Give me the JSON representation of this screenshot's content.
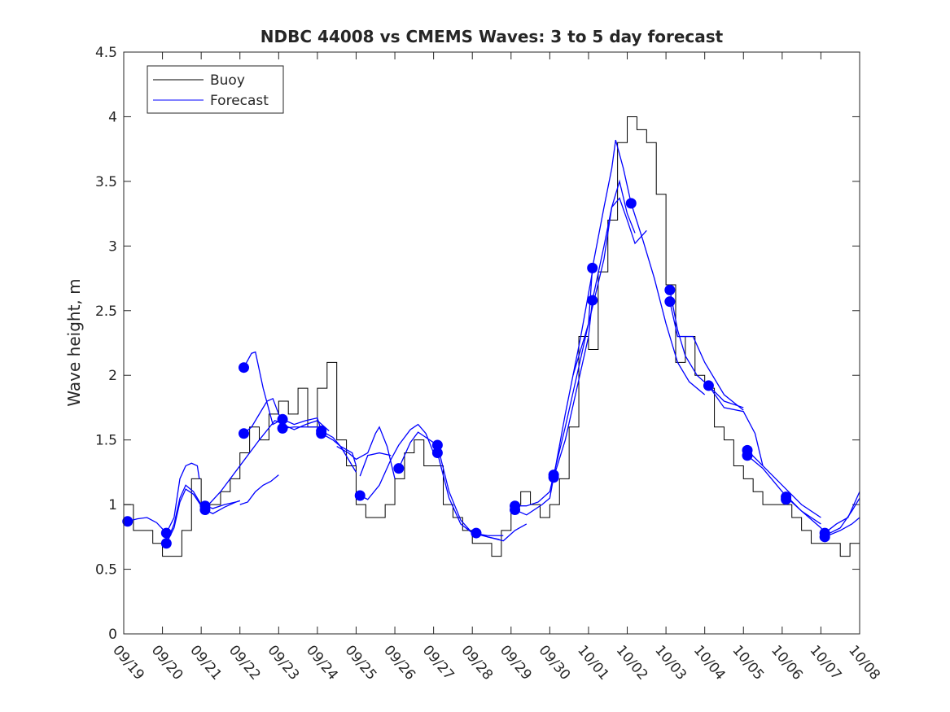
{
  "chart_data": {
    "type": "line",
    "title": "NDBC 44008 vs CMEMS Waves: 3 to 5 day forecast",
    "xlabel": "",
    "ylabel": "Wave height, m",
    "xlim_days": [
      0,
      19
    ],
    "ylim": [
      0,
      4.5
    ],
    "x_tick_labels": [
      "09/19",
      "09/20",
      "09/21",
      "09/22",
      "09/23",
      "09/24",
      "09/25",
      "09/26",
      "09/27",
      "09/28",
      "09/29",
      "09/30",
      "10/01",
      "10/02",
      "10/03",
      "10/04",
      "10/05",
      "10/06",
      "10/07",
      "10/08"
    ],
    "y_ticks": [
      0,
      0.5,
      1,
      1.5,
      2,
      2.5,
      3,
      3.5,
      4,
      4.5
    ],
    "y_tick_labels": [
      "0",
      "0.5",
      "1",
      "1.5",
      "2",
      "2.5",
      "3",
      "3.5",
      "4",
      "4.5"
    ],
    "legend": {
      "placement": "top-left",
      "entries": [
        "Buoy",
        "Forecast"
      ]
    },
    "colors": {
      "buoy": "#000000",
      "forecast": "#0000ff"
    },
    "buoy": {
      "name": "Buoy",
      "t0": 0,
      "dt_days": 0.25,
      "values": [
        1.0,
        0.8,
        0.8,
        0.7,
        0.6,
        0.6,
        0.8,
        1.2,
        1.0,
        1.0,
        1.1,
        1.2,
        1.4,
        1.6,
        1.5,
        1.7,
        1.8,
        1.7,
        1.9,
        1.6,
        1.9,
        2.1,
        1.5,
        1.3,
        1.0,
        0.9,
        0.9,
        1.0,
        1.2,
        1.4,
        1.5,
        1.3,
        1.3,
        1.0,
        0.9,
        0.8,
        0.7,
        0.7,
        0.6,
        0.8,
        1.0,
        1.1,
        1.0,
        0.9,
        1.0,
        1.2,
        1.6,
        2.3,
        2.2,
        2.8,
        3.2,
        3.8,
        4.0,
        3.9,
        3.8,
        3.4,
        2.7,
        2.1,
        2.3,
        2.0,
        1.9,
        1.6,
        1.5,
        1.3,
        1.2,
        1.1,
        1.0,
        1.0,
        1.0,
        0.9,
        0.8,
        0.7,
        0.7,
        0.7,
        0.6,
        0.7
      ]
    },
    "forecast_segments": [
      [
        [
          0.1,
          0.87
        ],
        [
          0.35,
          0.89
        ],
        [
          0.6,
          0.9
        ],
        [
          0.85,
          0.86
        ],
        [
          1.1,
          0.78
        ]
      ],
      [
        [
          1.1,
          0.78
        ],
        [
          1.3,
          0.9
        ],
        [
          1.45,
          1.2
        ],
        [
          1.6,
          1.3
        ],
        [
          1.75,
          1.32
        ],
        [
          1.9,
          1.3
        ],
        [
          1.95,
          1.2
        ]
      ],
      [
        [
          1.1,
          0.7
        ],
        [
          1.3,
          0.85
        ],
        [
          1.45,
          1.05
        ],
        [
          1.6,
          1.15
        ],
        [
          1.8,
          1.1
        ],
        [
          2.0,
          1.0
        ],
        [
          2.1,
          0.96
        ]
      ],
      [
        [
          1.1,
          0.7
        ],
        [
          1.3,
          0.82
        ],
        [
          1.45,
          1.02
        ],
        [
          1.6,
          1.12
        ],
        [
          1.8,
          1.08
        ],
        [
          2.0,
          0.99
        ],
        [
          2.1,
          0.99
        ]
      ],
      [
        [
          2.1,
          0.99
        ],
        [
          2.3,
          0.97
        ],
        [
          2.6,
          1.0
        ],
        [
          2.9,
          1.02
        ],
        [
          3.0,
          1.03
        ]
      ],
      [
        [
          2.1,
          0.96
        ],
        [
          2.3,
          0.93
        ],
        [
          2.6,
          0.98
        ],
        [
          2.9,
          1.02
        ],
        [
          3.0,
          1.03
        ]
      ],
      [
        [
          3.0,
          1.0
        ],
        [
          3.2,
          1.02
        ],
        [
          3.4,
          1.1
        ],
        [
          3.6,
          1.15
        ],
        [
          3.8,
          1.18
        ],
        [
          4.0,
          1.23
        ]
      ],
      [
        [
          2.1,
          0.97
        ],
        [
          2.5,
          1.1
        ],
        [
          3.0,
          1.3
        ],
        [
          3.5,
          1.5
        ],
        [
          3.9,
          1.65
        ],
        [
          4.1,
          1.63
        ]
      ],
      [
        [
          3.1,
          2.06
        ],
        [
          3.3,
          2.17
        ],
        [
          3.4,
          2.18
        ],
        [
          3.6,
          1.9
        ],
        [
          3.85,
          1.62
        ],
        [
          4.1,
          1.66
        ]
      ],
      [
        [
          3.1,
          1.55
        ],
        [
          3.3,
          1.6
        ],
        [
          3.5,
          1.7
        ],
        [
          3.7,
          1.8
        ],
        [
          3.85,
          1.82
        ],
        [
          4.0,
          1.7
        ],
        [
          4.1,
          1.66
        ]
      ],
      [
        [
          4.1,
          1.66
        ],
        [
          4.4,
          1.62
        ],
        [
          4.7,
          1.65
        ],
        [
          5.0,
          1.67
        ],
        [
          5.1,
          1.57
        ]
      ],
      [
        [
          4.1,
          1.59
        ],
        [
          4.4,
          1.6
        ],
        [
          4.7,
          1.6
        ],
        [
          5.0,
          1.6
        ],
        [
          5.1,
          1.55
        ]
      ],
      [
        [
          4.1,
          1.62
        ],
        [
          4.4,
          1.58
        ],
        [
          4.7,
          1.62
        ],
        [
          5.0,
          1.65
        ],
        [
          5.3,
          1.57
        ]
      ],
      [
        [
          5.1,
          1.57
        ],
        [
          5.4,
          1.52
        ],
        [
          5.6,
          1.45
        ],
        [
          5.9,
          1.4
        ],
        [
          6.0,
          1.3
        ]
      ],
      [
        [
          5.1,
          1.55
        ],
        [
          5.4,
          1.5
        ],
        [
          5.6,
          1.45
        ],
        [
          5.8,
          1.35
        ],
        [
          6.0,
          1.25
        ]
      ],
      [
        [
          5.5,
          1.45
        ],
        [
          5.8,
          1.4
        ],
        [
          6.0,
          1.35
        ],
        [
          6.3,
          1.4
        ],
        [
          6.5,
          1.55
        ],
        [
          6.6,
          1.6
        ],
        [
          6.8,
          1.45
        ],
        [
          7.0,
          1.2
        ]
      ],
      [
        [
          6.1,
          1.07
        ],
        [
          6.3,
          1.04
        ],
        [
          6.6,
          1.15
        ],
        [
          6.9,
          1.35
        ],
        [
          7.1,
          1.46
        ],
        [
          7.4,
          1.58
        ],
        [
          7.6,
          1.62
        ],
        [
          7.8,
          1.55
        ],
        [
          8.0,
          1.4
        ]
      ],
      [
        [
          6.1,
          1.22
        ],
        [
          6.3,
          1.38
        ],
        [
          6.6,
          1.4
        ],
        [
          6.9,
          1.38
        ]
      ],
      [
        [
          7.1,
          1.28
        ],
        [
          7.4,
          1.48
        ],
        [
          7.6,
          1.56
        ],
        [
          7.8,
          1.52
        ],
        [
          8.1,
          1.46
        ]
      ],
      [
        [
          8.1,
          1.46
        ],
        [
          8.4,
          1.1
        ],
        [
          8.7,
          0.88
        ],
        [
          9.0,
          0.78
        ],
        [
          9.4,
          0.75
        ],
        [
          9.7,
          0.73
        ]
      ],
      [
        [
          8.1,
          1.4
        ],
        [
          8.4,
          1.05
        ],
        [
          8.7,
          0.85
        ],
        [
          9.0,
          0.78
        ],
        [
          9.4,
          0.76
        ],
        [
          9.8,
          0.76
        ]
      ],
      [
        [
          9.1,
          0.78
        ],
        [
          9.4,
          0.75
        ],
        [
          9.8,
          0.72
        ],
        [
          10.1,
          0.8
        ],
        [
          10.4,
          0.85
        ]
      ],
      [
        [
          10.1,
          0.99
        ],
        [
          10.4,
          0.99
        ],
        [
          10.7,
          1.02
        ],
        [
          11.0,
          1.1
        ],
        [
          11.1,
          1.23
        ]
      ],
      [
        [
          10.1,
          0.96
        ],
        [
          10.4,
          0.92
        ],
        [
          10.8,
          1.0
        ],
        [
          11.0,
          1.05
        ],
        [
          11.4,
          1.7
        ],
        [
          11.8,
          2.3
        ],
        [
          12.1,
          2.8
        ]
      ],
      [
        [
          11.1,
          1.23
        ],
        [
          11.4,
          1.6
        ],
        [
          11.7,
          2.0
        ],
        [
          12.0,
          2.4
        ],
        [
          12.1,
          2.83
        ]
      ],
      [
        [
          11.1,
          1.21
        ],
        [
          11.4,
          1.5
        ],
        [
          11.7,
          1.9
        ],
        [
          12.0,
          2.3
        ],
        [
          12.1,
          2.58
        ]
      ],
      [
        [
          12.1,
          2.83
        ],
        [
          12.4,
          3.3
        ],
        [
          12.6,
          3.6
        ],
        [
          12.7,
          3.82
        ],
        [
          12.9,
          3.6
        ],
        [
          13.1,
          3.33
        ]
      ],
      [
        [
          12.1,
          2.58
        ],
        [
          12.4,
          3.0
        ],
        [
          12.6,
          3.3
        ],
        [
          12.8,
          3.5
        ],
        [
          13.0,
          3.25
        ],
        [
          13.2,
          3.1
        ]
      ],
      [
        [
          11.6,
          2.0
        ],
        [
          12.0,
          2.4
        ],
        [
          12.4,
          2.9
        ],
        [
          12.6,
          3.3
        ],
        [
          12.8,
          3.37
        ],
        [
          13.0,
          3.2
        ],
        [
          13.2,
          3.02
        ],
        [
          13.5,
          3.12
        ]
      ],
      [
        [
          13.1,
          3.33
        ],
        [
          13.4,
          3.05
        ],
        [
          13.7,
          2.75
        ],
        [
          14.0,
          2.4
        ],
        [
          14.3,
          2.1
        ],
        [
          14.6,
          1.95
        ],
        [
          15.0,
          1.85
        ]
      ],
      [
        [
          14.1,
          2.66
        ],
        [
          14.3,
          2.35
        ],
        [
          14.5,
          2.15
        ],
        [
          14.8,
          2.0
        ],
        [
          15.1,
          1.92
        ],
        [
          15.5,
          1.75
        ],
        [
          16.0,
          1.72
        ],
        [
          16.3,
          1.55
        ],
        [
          16.5,
          1.3
        ]
      ],
      [
        [
          14.1,
          2.57
        ],
        [
          14.3,
          2.3
        ],
        [
          14.5,
          2.3
        ],
        [
          14.7,
          2.3
        ],
        [
          15.0,
          2.1
        ],
        [
          15.5,
          1.85
        ],
        [
          16.0,
          1.73
        ]
      ],
      [
        [
          15.1,
          1.92
        ],
        [
          15.5,
          1.8
        ],
        [
          16.0,
          1.75
        ]
      ],
      [
        [
          16.1,
          1.38
        ],
        [
          16.5,
          1.28
        ],
        [
          17.0,
          1.1
        ],
        [
          17.5,
          0.95
        ],
        [
          18.0,
          0.85
        ]
      ],
      [
        [
          16.1,
          1.42
        ],
        [
          16.5,
          1.3
        ],
        [
          17.0,
          1.15
        ],
        [
          17.5,
          1.0
        ],
        [
          18.0,
          0.9
        ]
      ],
      [
        [
          17.1,
          1.06
        ],
        [
          17.5,
          0.95
        ],
        [
          18.0,
          0.82
        ],
        [
          18.1,
          0.78
        ]
      ],
      [
        [
          18.1,
          0.78
        ],
        [
          18.4,
          0.85
        ],
        [
          18.7,
          0.9
        ],
        [
          19.0,
          1.1
        ]
      ],
      [
        [
          18.1,
          0.75
        ],
        [
          18.5,
          0.8
        ],
        [
          18.8,
          0.85
        ],
        [
          19.0,
          0.9
        ]
      ],
      [
        [
          18.1,
          0.76
        ],
        [
          18.5,
          0.82
        ],
        [
          18.8,
          0.95
        ],
        [
          19.0,
          1.05
        ]
      ]
    ],
    "forecast_start_markers": [
      [
        0.1,
        0.87
      ],
      [
        1.1,
        0.78
      ],
      [
        1.1,
        0.7
      ],
      [
        2.1,
        0.99
      ],
      [
        2.1,
        0.96
      ],
      [
        3.1,
        2.06
      ],
      [
        3.1,
        1.55
      ],
      [
        4.1,
        1.66
      ],
      [
        4.1,
        1.59
      ],
      [
        5.1,
        1.57
      ],
      [
        5.1,
        1.55
      ],
      [
        6.1,
        1.07
      ],
      [
        7.1,
        1.28
      ],
      [
        8.1,
        1.46
      ],
      [
        8.1,
        1.4
      ],
      [
        9.1,
        0.78
      ],
      [
        10.1,
        0.99
      ],
      [
        10.1,
        0.96
      ],
      [
        11.1,
        1.23
      ],
      [
        11.1,
        1.21
      ],
      [
        12.1,
        2.83
      ],
      [
        12.1,
        2.58
      ],
      [
        13.1,
        3.33
      ],
      [
        14.1,
        2.66
      ],
      [
        14.1,
        2.57
      ],
      [
        15.1,
        1.92
      ],
      [
        16.1,
        1.42
      ],
      [
        16.1,
        1.38
      ],
      [
        17.1,
        1.06
      ],
      [
        17.1,
        1.04
      ],
      [
        18.1,
        0.78
      ],
      [
        18.1,
        0.75
      ]
    ]
  }
}
